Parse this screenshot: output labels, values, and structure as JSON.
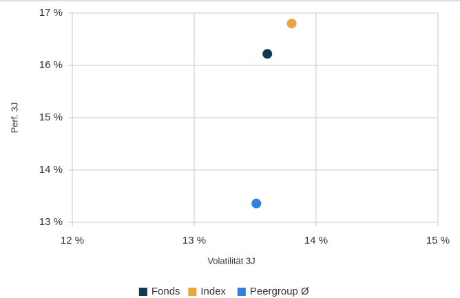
{
  "chart_data": {
    "type": "scatter",
    "xlabel": "Volatilität 3J",
    "ylabel": "Perf. 3J",
    "xlim": [
      12,
      15
    ],
    "ylim": [
      13,
      17
    ],
    "xticks": [
      {
        "value": 12,
        "label": "12 %"
      },
      {
        "value": 13,
        "label": "13 %"
      },
      {
        "value": 14,
        "label": "14 %"
      },
      {
        "value": 15,
        "label": "15 %"
      }
    ],
    "yticks": [
      {
        "value": 13,
        "label": "13 %"
      },
      {
        "value": 14,
        "label": "14 %"
      },
      {
        "value": 15,
        "label": "15 %"
      },
      {
        "value": 16,
        "label": "16 %"
      },
      {
        "value": 17,
        "label": "17 %"
      }
    ],
    "grid": true,
    "legend": "bottom",
    "series": [
      {
        "name": "Fonds",
        "color": "#0d3a4f",
        "x": [
          13.6
        ],
        "values": [
          16.22
        ]
      },
      {
        "name": "Index",
        "color": "#eaa440",
        "x": [
          13.8
        ],
        "values": [
          16.8
        ]
      },
      {
        "name": "Peergroup Ø",
        "color": "#2f7fde",
        "x": [
          13.51
        ],
        "values": [
          13.36
        ]
      }
    ]
  }
}
